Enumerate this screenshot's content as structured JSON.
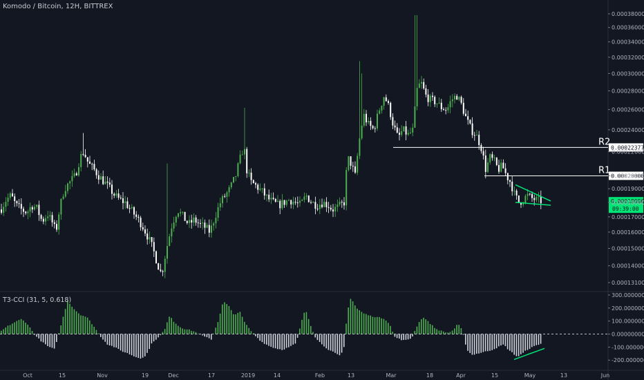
{
  "header": {
    "symbol_title": "Komodo / Bitcoin, 12H, BITTREX"
  },
  "indicator": {
    "title": "T3-CCI (31, 5, 0.618)"
  },
  "chart_data": [
    {
      "type": "candlestick",
      "title": "Komodo / Bitcoin, 12H, BITTREX",
      "x_tick_labels": [
        "Oct",
        "15",
        "Nov",
        "19",
        "Dec",
        "17",
        "2019",
        "14",
        "Feb",
        "13",
        "Mar",
        "18",
        "Apr",
        "15",
        "May",
        "13",
        "Jun"
      ],
      "y_tick_labels": [
        "0.00038000",
        "0.00036000",
        "0.00034000",
        "0.00032000",
        "0.00030000",
        "0.00028000",
        "0.00026000",
        "0.00024000",
        "0.00022000",
        "0.00020000",
        "0.00019000",
        "0.00018000",
        "0.00017000",
        "0.00016000",
        "0.00015000",
        "0.00014000",
        "0.00013100"
      ],
      "ylim": [
        0.000131,
        0.00038
      ],
      "scale": "log",
      "colors": {
        "up": "#4caf50",
        "down": "#ffffff",
        "background": "#131722"
      },
      "close_series": [
        [
          0,
          0.000175
        ],
        [
          8,
          0.000182
        ],
        [
          15,
          0.000185
        ],
        [
          22,
          0.000178
        ],
        [
          30,
          0.000175
        ],
        [
          38,
          0.000173
        ],
        [
          45,
          0.000178
        ],
        [
          52,
          0.000176
        ],
        [
          60,
          0.000167
        ],
        [
          68,
          0.000172
        ],
        [
          76,
          0.000165
        ],
        [
          80,
          0.00016
        ],
        [
          85,
          0.000175
        ],
        [
          92,
          0.00019
        ],
        [
          100,
          0.000195
        ],
        [
          108,
          0.0002
        ],
        [
          115,
          0.000215
        ],
        [
          120,
          0.00022
        ],
        [
          127,
          0.00021
        ],
        [
          135,
          0.000205
        ],
        [
          142,
          0.0002
        ],
        [
          150,
          0.000195
        ],
        [
          158,
          0.00019
        ],
        [
          165,
          0.000185
        ],
        [
          172,
          0.000182
        ],
        [
          180,
          0.00018
        ],
        [
          188,
          0.000175
        ],
        [
          196,
          0.00017
        ],
        [
          204,
          0.000165
        ],
        [
          212,
          0.000158
        ],
        [
          220,
          0.00015
        ],
        [
          228,
          0.00014
        ],
        [
          233,
          0.000135
        ],
        [
          240,
          0.00015
        ],
        [
          248,
          0.000165
        ],
        [
          256,
          0.000175
        ],
        [
          264,
          0.00017
        ],
        [
          272,
          0.000165
        ],
        [
          280,
          0.000168
        ],
        [
          288,
          0.000165
        ],
        [
          296,
          0.000163
        ],
        [
          303,
          0.00016
        ],
        [
          310,
          0.00017
        ],
        [
          318,
          0.00018
        ],
        [
          325,
          0.000185
        ],
        [
          332,
          0.00019
        ],
        [
          340,
          0.0002
        ],
        [
          347,
          0.000215
        ],
        [
          352,
          0.000225
        ],
        [
          356,
          0.000205
        ],
        [
          362,
          0.000195
        ],
        [
          370,
          0.000192
        ],
        [
          378,
          0.000188
        ],
        [
          386,
          0.000183
        ],
        [
          394,
          0.00018
        ],
        [
          402,
          0.000178
        ],
        [
          410,
          0.00018
        ],
        [
          418,
          0.000182
        ],
        [
          426,
          0.00018
        ],
        [
          434,
          0.000178
        ],
        [
          442,
          0.000185
        ],
        [
          450,
          0.00018
        ],
        [
          458,
          0.000178
        ],
        [
          466,
          0.00018
        ],
        [
          474,
          0.000178
        ],
        [
          480,
          0.000175
        ],
        [
          486,
          0.000176
        ],
        [
          492,
          0.000178
        ],
        [
          497,
          0.00018
        ],
        [
          502,
          0.000215
        ],
        [
          507,
          0.00021
        ],
        [
          513,
          0.0002
        ],
        [
          519,
          0.00023
        ],
        [
          525,
          0.000255
        ],
        [
          532,
          0.000245
        ],
        [
          540,
          0.00024
        ],
        [
          548,
          0.00026
        ],
        [
          555,
          0.000275
        ],
        [
          562,
          0.000262
        ],
        [
          568,
          0.000245
        ],
        [
          575,
          0.000232
        ],
        [
          582,
          0.00024
        ],
        [
          590,
          0.000235
        ],
        [
          597,
          0.00024
        ],
        [
          602,
          0.00028
        ],
        [
          608,
          0.00029
        ],
        [
          615,
          0.000275
        ],
        [
          622,
          0.00027
        ],
        [
          630,
          0.000268
        ],
        [
          638,
          0.000262
        ],
        [
          646,
          0.00026
        ],
        [
          652,
          0.00027
        ],
        [
          660,
          0.000275
        ],
        [
          667,
          0.000265
        ],
        [
          674,
          0.00025
        ],
        [
          681,
          0.00024
        ],
        [
          688,
          0.000235
        ],
        [
          695,
          0.000225
        ],
        [
          702,
          0.000205
        ],
        [
          708,
          0.000215
        ],
        [
          714,
          0.000212
        ],
        [
          720,
          0.000205
        ],
        [
          726,
          0.000208
        ],
        [
          732,
          0.0002
        ],
        [
          738,
          0.000195
        ],
        [
          744,
          0.000185
        ],
        [
          750,
          0.00018
        ],
        [
          756,
          0.000182
        ],
        [
          762,
          0.000185
        ],
        [
          768,
          0.000183
        ],
        [
          774,
          0.000182
        ],
        [
          780,
          0.000181
        ]
      ],
      "annotations": [
        {
          "label": "R2",
          "value": 0.00022377,
          "badge": "0.00022377"
        },
        {
          "label": "R1",
          "value": 0.0002,
          "badge": "0.00020000"
        }
      ],
      "last_price_badge": {
        "value": "0.00018086",
        "countdown": "09:39:00",
        "color": "#00e676"
      },
      "pattern": "falling-wedge"
    },
    {
      "type": "bar",
      "title": "T3-CCI (31, 5, 0.618)",
      "y_tick_labels": [
        "300.00000000",
        "200.00000000",
        "100.00000000",
        "0.00000000",
        "-100.00000000",
        "-200.00000000"
      ],
      "ylim": [
        -220,
        300
      ],
      "colors": {
        "positive": "#4caf50",
        "negative": "#d1d4dc"
      },
      "series": [
        [
          0,
          20
        ],
        [
          10,
          60
        ],
        [
          20,
          90
        ],
        [
          30,
          115
        ],
        [
          38,
          85
        ],
        [
          45,
          30
        ],
        [
          50,
          -10
        ],
        [
          60,
          -60
        ],
        [
          70,
          -100
        ],
        [
          78,
          -115
        ],
        [
          85,
          20
        ],
        [
          92,
          160
        ],
        [
          97,
          260
        ],
        [
          105,
          200
        ],
        [
          115,
          150
        ],
        [
          125,
          130
        ],
        [
          135,
          60
        ],
        [
          145,
          -20
        ],
        [
          155,
          -80
        ],
        [
          165,
          -100
        ],
        [
          175,
          -130
        ],
        [
          185,
          -150
        ],
        [
          195,
          -175
        ],
        [
          203,
          -185
        ],
        [
          210,
          -170
        ],
        [
          220,
          -60
        ],
        [
          230,
          -20
        ],
        [
          238,
          40
        ],
        [
          245,
          150
        ],
        [
          250,
          100
        ],
        [
          258,
          60
        ],
        [
          266,
          40
        ],
        [
          275,
          30
        ],
        [
          285,
          10
        ],
        [
          295,
          -20
        ],
        [
          305,
          -40
        ],
        [
          315,
          100
        ],
        [
          322,
          250
        ],
        [
          330,
          220
        ],
        [
          338,
          140
        ],
        [
          346,
          180
        ],
        [
          352,
          100
        ],
        [
          360,
          40
        ],
        [
          368,
          -10
        ],
        [
          378,
          -60
        ],
        [
          388,
          -90
        ],
        [
          398,
          -110
        ],
        [
          408,
          -120
        ],
        [
          418,
          -100
        ],
        [
          428,
          -70
        ],
        [
          438,
          150
        ],
        [
          442,
          180
        ],
        [
          448,
          80
        ],
        [
          455,
          -20
        ],
        [
          465,
          -80
        ],
        [
          475,
          -120
        ],
        [
          485,
          -150
        ],
        [
          492,
          -170
        ],
        [
          497,
          -100
        ],
        [
          502,
          180
        ],
        [
          507,
          280
        ],
        [
          515,
          200
        ],
        [
          525,
          160
        ],
        [
          535,
          140
        ],
        [
          545,
          130
        ],
        [
          555,
          120
        ],
        [
          563,
          80
        ],
        [
          570,
          -20
        ],
        [
          578,
          -40
        ],
        [
          585,
          -50
        ],
        [
          595,
          -30
        ],
        [
          605,
          90
        ],
        [
          612,
          130
        ],
        [
          620,
          90
        ],
        [
          630,
          40
        ],
        [
          640,
          20
        ],
        [
          648,
          10
        ],
        [
          655,
          30
        ],
        [
          662,
          80
        ],
        [
          668,
          30
        ],
        [
          675,
          -120
        ],
        [
          682,
          -160
        ],
        [
          690,
          -150
        ],
        [
          698,
          -140
        ],
        [
          705,
          -130
        ],
        [
          712,
          -120
        ],
        [
          720,
          -100
        ],
        [
          728,
          -80
        ],
        [
          735,
          -120
        ],
        [
          742,
          -150
        ],
        [
          748,
          -175
        ],
        [
          755,
          -150
        ],
        [
          762,
          -120
        ],
        [
          770,
          -100
        ],
        [
          778,
          -80
        ],
        [
          785,
          -70
        ]
      ]
    }
  ]
}
